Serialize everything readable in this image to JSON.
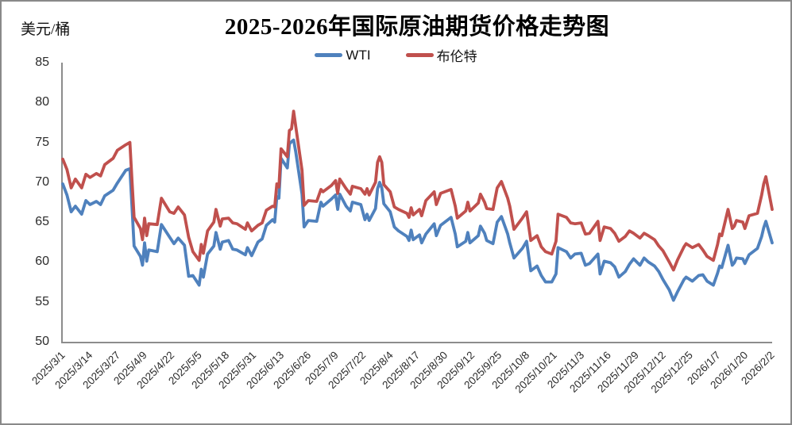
{
  "frame": {
    "background": "#ffffff",
    "border_color": "#898989",
    "axis_color": "#8c8c8c"
  },
  "header": {
    "title": "2025-2026年国际原油期货价格走势图",
    "unit_label": "美元/桶"
  },
  "legend": {
    "position": "top-center",
    "items": [
      {
        "label": "WTI",
        "color": "#4F81BD"
      },
      {
        "label": "布伦特",
        "color": "#C0504D"
      }
    ]
  },
  "chart_data": {
    "type": "line",
    "title": "2025-2026年国际原油期货价格走势图",
    "ylabel": "美元/桶",
    "xlabel": "",
    "ylim": [
      50,
      85
    ],
    "y_ticks": [
      85,
      80,
      75,
      70,
      65,
      60,
      55,
      50
    ],
    "grid": false,
    "legend_position": "top",
    "x_tick_interval_days": 13,
    "x_days_range": [
      0,
      338
    ],
    "x_tick_labels": [
      "2025/3/1",
      "2025/3/14",
      "2025/3/27",
      "2025/4/9",
      "2025/4/22",
      "2025/5/5",
      "2025/5/18",
      "2025/5/31",
      "2025/6/13",
      "2025/6/26",
      "2025/7/9",
      "2025/7/22",
      "2025/8/4",
      "2025/8/17",
      "2025/8/30",
      "2025/9/12",
      "2025/9/25",
      "2025/10/8",
      "2025/10/21",
      "2025/11/3",
      "2025/11/16",
      "2025/11/29",
      "2025/12/12",
      "2025/12/25",
      "2026/1/7",
      "2026/1/20",
      "2026/2/2"
    ],
    "x_days": [
      0,
      2,
      4,
      6,
      9,
      11,
      13,
      16,
      18,
      20,
      24,
      26,
      30,
      32,
      33,
      34,
      37,
      38,
      39,
      40,
      41,
      45,
      47,
      51,
      53,
      55,
      58,
      60,
      62,
      65,
      66,
      67,
      69,
      72,
      73,
      75,
      76,
      79,
      81,
      83,
      87,
      88,
      90,
      93,
      95,
      97,
      100,
      101,
      102,
      103,
      104,
      107,
      108,
      109,
      110,
      111,
      114,
      115,
      117,
      121,
      123,
      124,
      128,
      130,
      131,
      132,
      135,
      137,
      138,
      142,
      144,
      145,
      146,
      149,
      150,
      151,
      152,
      153,
      156,
      158,
      160,
      164,
      165,
      166,
      167,
      170,
      171,
      173,
      177,
      178,
      180,
      185,
      187,
      188,
      192,
      193,
      194,
      198,
      199,
      201,
      202,
      205,
      207,
      209,
      212,
      213,
      215,
      219,
      221,
      223,
      226,
      228,
      230,
      233,
      235,
      236,
      240,
      242,
      244,
      247,
      249,
      251,
      255,
      256,
      258,
      261,
      263,
      265,
      268,
      270,
      272,
      275,
      277,
      279,
      282,
      284,
      286,
      289,
      291,
      293,
      296,
      297,
      300,
      303,
      305,
      307,
      310,
      312,
      313,
      314,
      317,
      319,
      320,
      321,
      324,
      325,
      327,
      331,
      333,
      334,
      335,
      338
    ],
    "series": [
      {
        "name": "WTI",
        "color": "#4F81BD",
        "values": [
          69.8,
          68.4,
          66.3,
          67.0,
          66.0,
          67.7,
          67.2,
          67.6,
          67.2,
          68.3,
          69.0,
          69.9,
          71.5,
          71.7,
          66.9,
          62.0,
          60.7,
          59.6,
          62.4,
          60.1,
          61.5,
          61.3,
          64.7,
          63.1,
          62.3,
          63.0,
          62.1,
          58.2,
          58.3,
          57.1,
          59.1,
          58.1,
          61.0,
          62.0,
          63.7,
          61.6,
          62.5,
          62.7,
          61.6,
          61.5,
          60.9,
          61.8,
          60.8,
          62.5,
          62.9,
          64.6,
          65.3,
          65.0,
          68.2,
          68.0,
          73.0,
          71.8,
          74.8,
          75.1,
          75.3,
          73.8,
          68.5,
          64.4,
          65.2,
          65.1,
          67.5,
          67.0,
          67.9,
          68.4,
          66.6,
          68.5,
          67.0,
          66.4,
          67.5,
          67.2,
          65.3,
          66.0,
          65.2,
          66.7,
          69.2,
          70.0,
          69.3,
          67.3,
          66.3,
          64.4,
          63.9,
          63.2,
          62.7,
          64.0,
          62.8,
          63.4,
          62.4,
          63.5,
          64.8,
          63.3,
          64.6,
          65.6,
          63.5,
          61.9,
          62.6,
          63.7,
          62.4,
          63.3,
          64.5,
          63.6,
          62.7,
          62.3,
          65.0,
          65.7,
          63.5,
          62.4,
          60.5,
          61.7,
          62.6,
          58.9,
          59.5,
          58.3,
          57.5,
          57.5,
          58.5,
          61.8,
          61.3,
          60.5,
          61.0,
          61.1,
          59.6,
          59.8,
          61.0,
          58.5,
          60.1,
          59.9,
          59.4,
          58.1,
          58.8,
          59.7,
          60.4,
          59.6,
          60.5,
          60.0,
          59.5,
          58.8,
          57.8,
          56.5,
          55.2,
          56.3,
          57.8,
          58.1,
          57.6,
          58.3,
          58.4,
          57.6,
          57.1,
          58.6,
          59.5,
          59.3,
          62.1,
          59.6,
          59.9,
          60.5,
          60.4,
          59.8,
          60.9,
          61.7,
          63.2,
          64.3,
          65.1,
          62.4
        ]
      },
      {
        "name": "布伦特",
        "color": "#C0504D",
        "values": [
          72.9,
          71.6,
          69.3,
          70.4,
          69.3,
          71.0,
          70.6,
          71.1,
          70.8,
          72.2,
          73.0,
          74.0,
          74.7,
          75.0,
          70.1,
          65.6,
          64.2,
          62.8,
          65.5,
          63.3,
          64.8,
          64.7,
          68.0,
          66.3,
          66.1,
          66.9,
          65.9,
          63.1,
          61.3,
          60.2,
          62.2,
          61.1,
          63.9,
          65.0,
          66.6,
          64.5,
          65.4,
          65.5,
          64.9,
          64.8,
          64.1,
          64.9,
          63.9,
          64.6,
          64.9,
          66.5,
          67.0,
          66.9,
          69.8,
          69.4,
          74.2,
          73.2,
          76.5,
          76.7,
          78.9,
          77.0,
          71.5,
          67.1,
          67.7,
          67.6,
          69.1,
          68.8,
          69.6,
          70.2,
          68.6,
          70.4,
          69.2,
          68.5,
          69.5,
          69.2,
          68.5,
          69.2,
          68.4,
          70.0,
          72.5,
          73.2,
          72.5,
          69.7,
          68.8,
          66.9,
          66.6,
          66.1,
          65.6,
          66.8,
          65.9,
          66.6,
          65.8,
          67.7,
          68.8,
          67.2,
          68.6,
          69.1,
          67.0,
          65.5,
          66.4,
          67.5,
          66.4,
          67.4,
          68.5,
          67.5,
          66.7,
          66.6,
          69.3,
          70.1,
          68.0,
          67.0,
          64.1,
          65.5,
          66.3,
          62.7,
          63.3,
          61.9,
          61.3,
          61.0,
          62.6,
          66.0,
          65.6,
          64.9,
          64.8,
          64.9,
          63.5,
          63.6,
          65.1,
          62.7,
          64.4,
          64.2,
          63.6,
          62.6,
          63.2,
          63.9,
          63.6,
          63.0,
          63.6,
          63.3,
          62.8,
          62.0,
          61.4,
          60.0,
          59.0,
          60.3,
          61.9,
          62.3,
          61.8,
          62.2,
          61.5,
          60.7,
          60.2,
          62.2,
          63.5,
          63.3,
          66.6,
          64.2,
          64.5,
          65.2,
          65.0,
          64.2,
          65.8,
          66.1,
          68.4,
          69.8,
          70.7,
          66.6
        ]
      }
    ]
  }
}
